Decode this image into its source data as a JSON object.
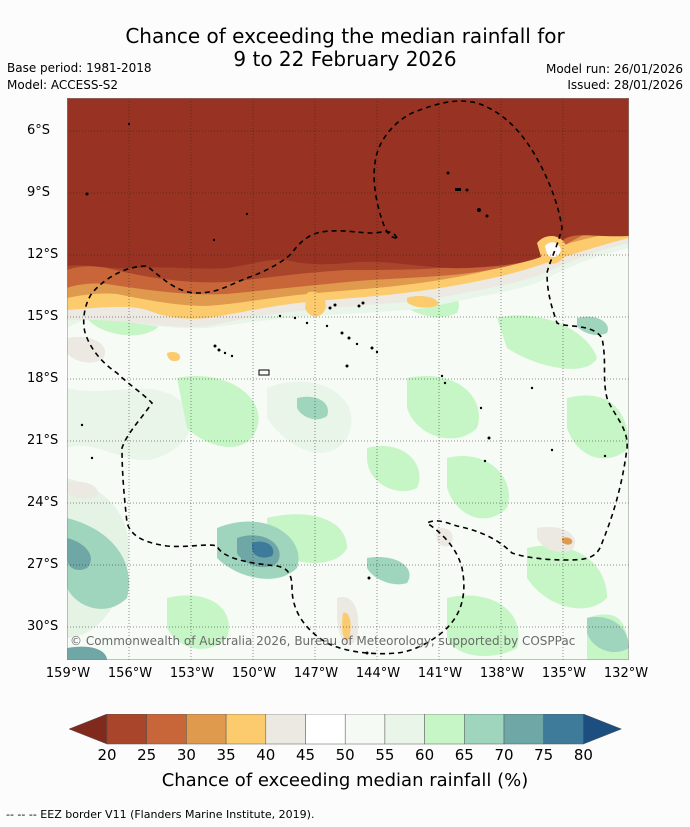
{
  "header": {
    "title_line1": "Chance of exceeding the median rainfall for",
    "title_line2": "9 to 22 February 2026",
    "base_period": "Base period: 1981-2018",
    "model": "Model: ACCESS-S2",
    "model_run": "Model run: 26/01/2026",
    "issued": "Issued: 28/01/2026"
  },
  "map": {
    "lat_labels": [
      "6°S",
      "9°S",
      "12°S",
      "15°S",
      "18°S",
      "21°S",
      "24°S",
      "27°S",
      "30°S"
    ],
    "lon_labels": [
      "159°W",
      "156°W",
      "153°W",
      "150°W",
      "147°W",
      "144°W",
      "141°W",
      "138°W",
      "135°W",
      "132°W"
    ],
    "copyright": "© Commonwealth of Australia 2026, Bureau of Meteorology, supported by COSPPac"
  },
  "colorbar": {
    "labels": [
      "20",
      "25",
      "30",
      "35",
      "40",
      "45",
      "50",
      "55",
      "60",
      "65",
      "70",
      "75",
      "80"
    ],
    "colors": [
      "#7f2a1c",
      "#a8452a",
      "#c8663a",
      "#e09a4e",
      "#fccb6e",
      "#ece8e2",
      "#ffffff",
      "#f5fbf4",
      "#e8f5e8",
      "#c6f5c6",
      "#9fd4bd",
      "#6fa6a6",
      "#3e7b9a",
      "#1c4f80"
    ],
    "title": "Chance of exceeding median rainfall (%)"
  },
  "footer": {
    "legend_text": "--  --  -- EEZ border V11 (Flanders Marine Institute, 2019)."
  }
}
